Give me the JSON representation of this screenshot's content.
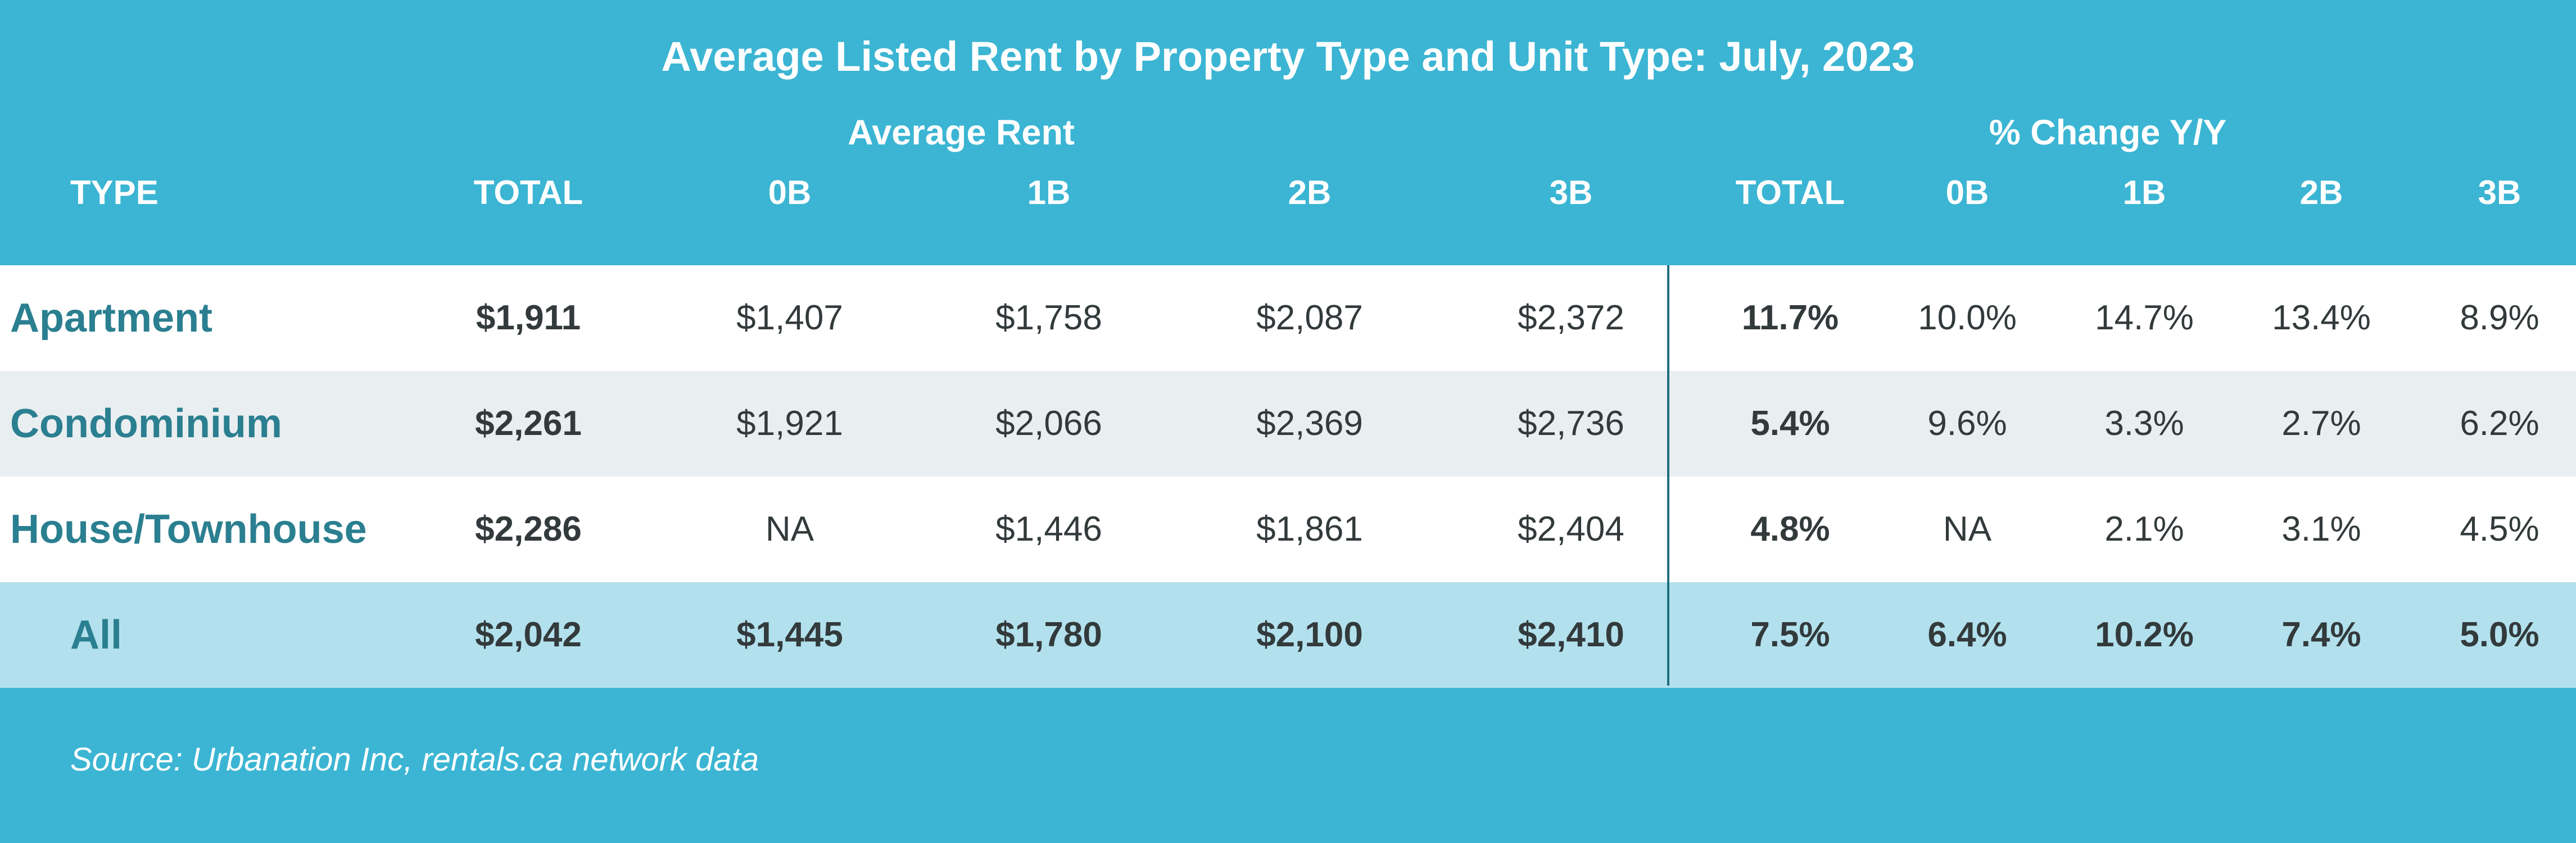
{
  "title": "Average Listed Rent by Property Type and Unit Type: July, 2023",
  "groups": {
    "avg": "Average Rent",
    "pct": "% Change Y/Y"
  },
  "columns": [
    "TYPE",
    "TOTAL",
    "0B",
    "1B",
    "2B",
    "3B",
    "TOTAL",
    "0B",
    "1B",
    "2B",
    "3B"
  ],
  "source": "Source: Urbanation Inc, rentals.ca network data",
  "colors": {
    "background": "#3bb5d3",
    "row_white": "#ffffff",
    "row_gray": "#e9eef0",
    "row_all": "#b2e1ed",
    "label_teal": "#2a7f90",
    "text_dark": "#333a3c"
  },
  "chart_data": {
    "type": "table",
    "title": "Average Listed Rent by Property Type and Unit Type: July, 2023",
    "columns": [
      "TYPE",
      "TOTAL",
      "0B",
      "1B",
      "2B",
      "3B",
      "TOTAL",
      "0B",
      "1B",
      "2B",
      "3B"
    ],
    "rows": [
      {
        "type": "Apartment",
        "cells": [
          "$1,911",
          "$1,407",
          "$1,758",
          "$2,087",
          "$2,372",
          "11.7%",
          "10.0%",
          "14.7%",
          "13.4%",
          "8.9%"
        ]
      },
      {
        "type": "Condominium",
        "cells": [
          "$2,261",
          "$1,921",
          "$2,066",
          "$2,369",
          "$2,736",
          "5.4%",
          "9.6%",
          "3.3%",
          "2.7%",
          "6.2%"
        ]
      },
      {
        "type": "House/Townhouse",
        "cells": [
          "$2,286",
          "NA",
          "$1,446",
          "$1,861",
          "$2,404",
          "4.8%",
          "NA",
          "2.1%",
          "3.1%",
          "4.5%"
        ]
      },
      {
        "type": "All",
        "cells": [
          "$2,042",
          "$1,445",
          "$1,780",
          "$2,100",
          "$2,410",
          "7.5%",
          "6.4%",
          "10.2%",
          "7.4%",
          "5.0%"
        ]
      }
    ]
  }
}
